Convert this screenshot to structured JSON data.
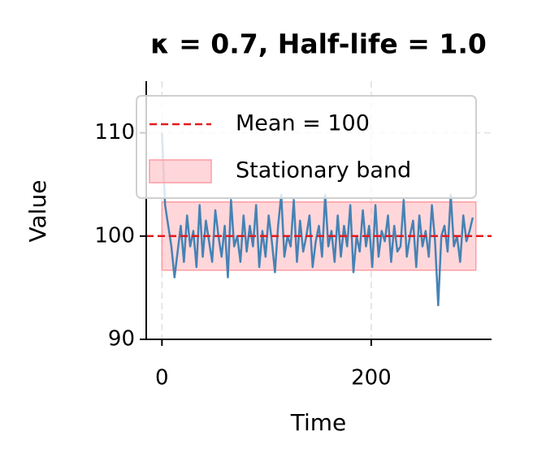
{
  "chart_data": {
    "type": "line",
    "title": "κ = 0.7, Half-life = 1.0",
    "x_label": "Time",
    "y_label": "Value",
    "xlim": [
      -15,
      315
    ],
    "ylim": [
      90,
      115
    ],
    "xticks": [
      0,
      200
    ],
    "yticks": [
      90,
      100,
      110
    ],
    "grid": true,
    "legend": "upper left",
    "x": [
      0,
      3,
      6,
      9,
      12,
      15,
      18,
      21,
      24,
      27,
      30,
      33,
      36,
      39,
      42,
      45,
      48,
      51,
      54,
      57,
      60,
      63,
      66,
      69,
      72,
      75,
      78,
      81,
      84,
      87,
      90,
      93,
      96,
      99,
      102,
      105,
      108,
      111,
      114,
      117,
      120,
      123,
      126,
      129,
      132,
      135,
      138,
      141,
      144,
      147,
      150,
      153,
      156,
      159,
      162,
      165,
      168,
      171,
      174,
      177,
      180,
      183,
      186,
      189,
      192,
      195,
      198,
      201,
      204,
      207,
      210,
      213,
      216,
      219,
      222,
      225,
      228,
      231,
      234,
      237,
      240,
      243,
      246,
      249,
      252,
      255,
      258,
      261,
      264,
      267,
      270,
      273,
      276,
      279,
      282,
      285,
      288,
      291,
      294,
      297
    ],
    "series": [
      {
        "name": "Value",
        "color": "#4682b4",
        "values": [
          110,
          103,
          101,
          99,
          96,
          98.5,
          101,
          97.5,
          102,
          99,
          100.5,
          97,
          103,
          98,
          101.5,
          99.5,
          97.5,
          102.5,
          100,
          98,
          101,
          96,
          103.5,
          99,
          100,
          97.5,
          102,
          98.5,
          101,
          99,
          103,
          97,
          100.5,
          98,
          102,
          99.5,
          96.5,
          101,
          104,
          98,
          100,
          99,
          103.5,
          97.5,
          101.5,
          98.5,
          100,
          102,
          97,
          99.5,
          101,
          98,
          104,
          99,
          100.5,
          97.5,
          102,
          98,
          101,
          99,
          103,
          96.5,
          100,
          98.5,
          102.5,
          99,
          101,
          97,
          103,
          98,
          100.5,
          99.5,
          102,
          97.5,
          101,
          98.5,
          99,
          103.5,
          98,
          100,
          101.5,
          97,
          102,
          99,
          100.5,
          98,
          103,
          99.5,
          93.3,
          100,
          101,
          98.5,
          104,
          99,
          100,
          97.5,
          102,
          99.5,
          100.5,
          101.8
        ]
      }
    ],
    "mean_line": {
      "name": "Mean = 100",
      "value": 100,
      "color": "#e31a1c"
    },
    "band": {
      "name": "Stationary band",
      "lower": 96.7,
      "upper": 103.3,
      "x_start": 0,
      "x_end": 300,
      "color": "#ff9aa2"
    }
  }
}
